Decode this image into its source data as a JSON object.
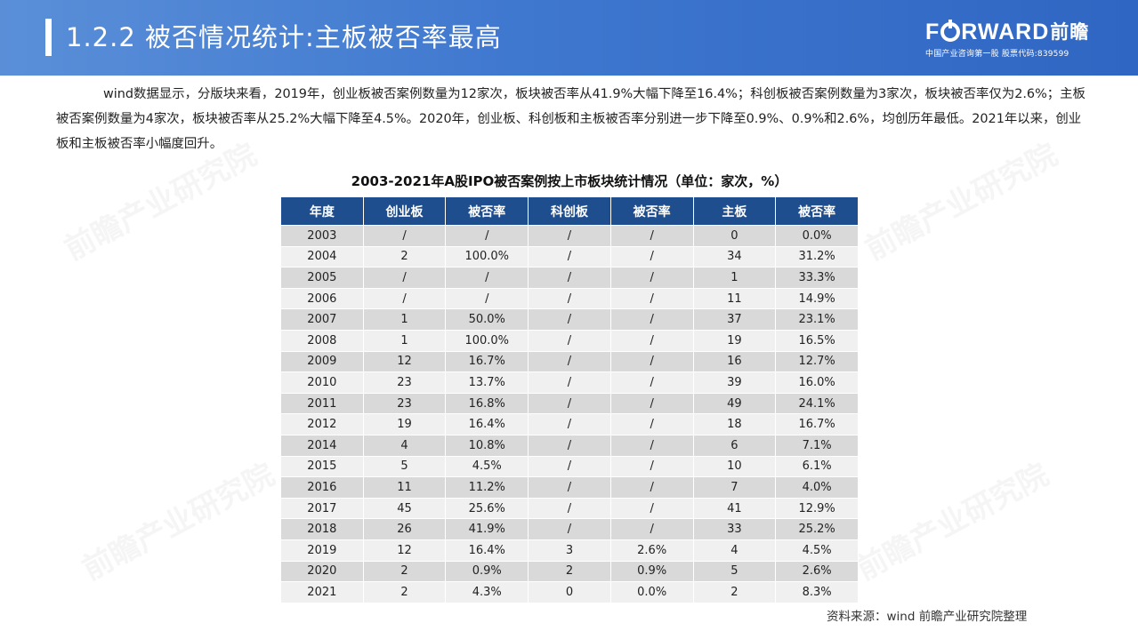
{
  "header": {
    "title": "1.2.2 被否情况统计:主板被否率最高"
  },
  "logo": {
    "text_start": "F",
    "text_end": "RWARD",
    "text_cn": "前瞻",
    "subtitle": "中国产业咨询第一股 股票代码:839599"
  },
  "intro": "wind数据显示，分版块来看，2019年，创业板被否案例数量为12家次，板块被否率从41.9%大幅下降至16.4%；科创板被否案例数量为3家次，板块被否率仅为2.6%；主板被否案例数量为4家次，板块被否率从25.2%大幅下降至4.5%。2020年，创业板、科创板和主板被否率分别进一步下降至0.9%、0.9%和2.6%，均创历年最低。2021年以来，创业板和主板被否率小幅度回升。",
  "table": {
    "title": "2003-2021年A股IPO被否案例按上市板块统计情况（单位：家次，%）",
    "headers": [
      "年度",
      "创业板",
      "被否率",
      "科创板",
      "被否率",
      "主板",
      "被否率"
    ],
    "rows": [
      [
        "2003",
        "/",
        "/",
        "/",
        "/",
        "0",
        "0.0%"
      ],
      [
        "2004",
        "2",
        "100.0%",
        "/",
        "/",
        "34",
        "31.2%"
      ],
      [
        "2005",
        "/",
        "/",
        "/",
        "/",
        "1",
        "33.3%"
      ],
      [
        "2006",
        "/",
        "/",
        "/",
        "/",
        "11",
        "14.9%"
      ],
      [
        "2007",
        "1",
        "50.0%",
        "/",
        "/",
        "37",
        "23.1%"
      ],
      [
        "2008",
        "1",
        "100.0%",
        "/",
        "/",
        "19",
        "16.5%"
      ],
      [
        "2009",
        "12",
        "16.7%",
        "/",
        "/",
        "16",
        "12.7%"
      ],
      [
        "2010",
        "23",
        "13.7%",
        "/",
        "/",
        "39",
        "16.0%"
      ],
      [
        "2011",
        "23",
        "16.8%",
        "/",
        "/",
        "49",
        "24.1%"
      ],
      [
        "2012",
        "19",
        "16.4%",
        "/",
        "/",
        "18",
        "16.7%"
      ],
      [
        "2014",
        "4",
        "10.8%",
        "/",
        "/",
        "6",
        "7.1%"
      ],
      [
        "2015",
        "5",
        "4.5%",
        "/",
        "/",
        "10",
        "6.1%"
      ],
      [
        "2016",
        "11",
        "11.2%",
        "/",
        "/",
        "7",
        "4.0%"
      ],
      [
        "2017",
        "45",
        "25.6%",
        "/",
        "/",
        "41",
        "12.9%"
      ],
      [
        "2018",
        "26",
        "41.9%",
        "/",
        "/",
        "33",
        "25.2%"
      ],
      [
        "2019",
        "12",
        "16.4%",
        "3",
        "2.6%",
        "4",
        "4.5%"
      ],
      [
        "2020",
        "2",
        "0.9%",
        "2",
        "0.9%",
        "5",
        "2.6%"
      ],
      [
        "2021",
        "2",
        "4.3%",
        "0",
        "0.0%",
        "2",
        "8.3%"
      ]
    ]
  },
  "source": "资料来源：wind 前瞻产业研究院整理",
  "watermark": "前瞻产业研究院",
  "colors": {
    "header_bg": "#3f78cf",
    "table_header_bg": "#1f4e8f",
    "row_dark": "#d9d9d9",
    "row_light": "#f0f0f0"
  }
}
